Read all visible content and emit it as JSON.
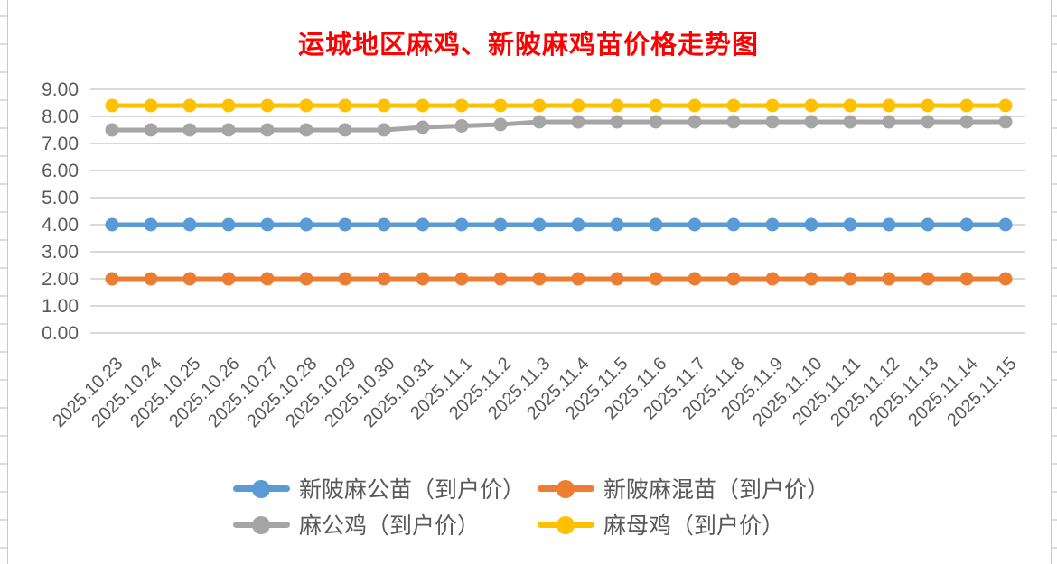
{
  "chart_data": {
    "type": "line",
    "title": "运城地区麻鸡、新陂麻鸡苗价格走势图",
    "title_color": "#FF0000",
    "x": [
      "2025.10.23",
      "2025.10.24",
      "2025.10.25",
      "2025.10.26",
      "2025.10.27",
      "2025.10.28",
      "2025.10.29",
      "2025.10.30",
      "2025.10.31",
      "2025.11.1",
      "2025.11.2",
      "2025.11.3",
      "2025.11.4",
      "2025.11.5",
      "2025.11.6",
      "2025.11.7",
      "2025.11.8",
      "2025.11.9",
      "2025.11.10",
      "2025.11.11",
      "2025.11.12",
      "2025.11.13",
      "2025.11.14",
      "2025.11.15"
    ],
    "series": [
      {
        "name": "新陂麻公苗（到户价）",
        "color": "#5B9BD5",
        "values": [
          4,
          4,
          4,
          4,
          4,
          4,
          4,
          4,
          4,
          4,
          4,
          4,
          4,
          4,
          4,
          4,
          4,
          4,
          4,
          4,
          4,
          4,
          4,
          4
        ]
      },
      {
        "name": "新陂麻混苗（到户价）",
        "color": "#ED7D31",
        "values": [
          2,
          2,
          2,
          2,
          2,
          2,
          2,
          2,
          2,
          2,
          2,
          2,
          2,
          2,
          2,
          2,
          2,
          2,
          2,
          2,
          2,
          2,
          2,
          2
        ]
      },
      {
        "name": "麻公鸡（到户价）",
        "color": "#A5A5A5",
        "values": [
          7.5,
          7.5,
          7.5,
          7.5,
          7.5,
          7.5,
          7.5,
          7.5,
          7.6,
          7.65,
          7.7,
          7.8,
          7.8,
          7.8,
          7.8,
          7.8,
          7.8,
          7.8,
          7.8,
          7.8,
          7.8,
          7.8,
          7.8,
          7.8
        ]
      },
      {
        "name": "麻母鸡（到户价）",
        "color": "#FFC000",
        "values": [
          8.4,
          8.4,
          8.4,
          8.4,
          8.4,
          8.4,
          8.4,
          8.4,
          8.4,
          8.4,
          8.4,
          8.4,
          8.4,
          8.4,
          8.4,
          8.4,
          8.4,
          8.4,
          8.4,
          8.4,
          8.4,
          8.4,
          8.4,
          8.4
        ]
      }
    ],
    "y_axis": {
      "min": 0,
      "max": 9,
      "step": 1,
      "tick_labels": [
        "0.00",
        "1.00",
        "2.00",
        "3.00",
        "4.00",
        "5.00",
        "6.00",
        "7.00",
        "8.00",
        "9.00"
      ]
    },
    "grid": true,
    "legend_position": "bottom",
    "axis_text_color": "#595959",
    "gridline_color": "#D9D9D9"
  }
}
